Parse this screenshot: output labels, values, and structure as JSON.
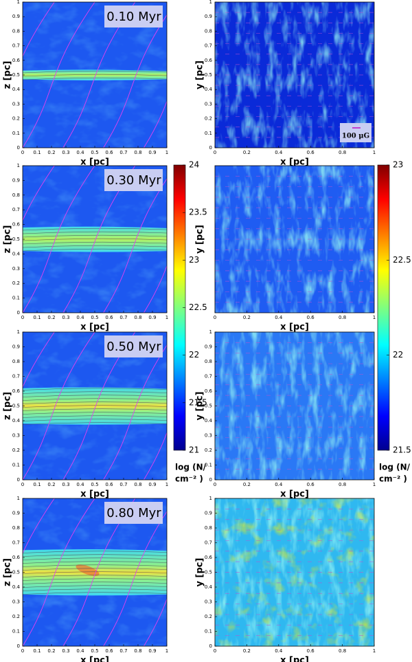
{
  "chart_data": [
    {
      "type": "image",
      "title": "0.10 Myr",
      "xlabel": "x [pc]",
      "ylabel": "z [pc]",
      "xlim": [
        0,
        1
      ],
      "ylim": [
        0,
        1
      ],
      "xticks": [
        0,
        0.1,
        0.2,
        0.3,
        0.4,
        0.5,
        0.6,
        0.7,
        0.8,
        0.9,
        1
      ],
      "yticks": [
        0,
        0.1,
        0.2,
        0.3,
        0.4,
        0.5,
        0.6,
        0.7,
        0.8,
        0.9,
        1
      ]
    },
    {
      "type": "image",
      "annotation": "100 μG",
      "xlabel": "x [pc]",
      "ylabel": "y [pc]",
      "xlim": [
        0,
        1
      ],
      "ylim": [
        0,
        1
      ],
      "xticks": [
        0,
        0.2,
        0.4,
        0.6,
        0.8,
        1
      ],
      "yticks": [
        0,
        0.1,
        0.2,
        0.3,
        0.4,
        0.5,
        0.6,
        0.7,
        0.8,
        0.9,
        1
      ]
    },
    {
      "type": "image",
      "title": "0.30 Myr",
      "xlabel": "x [pc]",
      "ylabel": "z [pc]",
      "xlim": [
        0,
        1
      ],
      "ylim": [
        0,
        1
      ],
      "xticks": [
        0,
        0.1,
        0.2,
        0.3,
        0.4,
        0.5,
        0.6,
        0.7,
        0.8,
        0.9,
        1
      ],
      "yticks": [
        0,
        0.1,
        0.2,
        0.3,
        0.4,
        0.5,
        0.6,
        0.7,
        0.8,
        0.9,
        1
      ]
    },
    {
      "type": "image",
      "xlabel": "x [pc]",
      "ylabel": "y [pc]",
      "xlim": [
        0,
        1
      ],
      "ylim": [
        0,
        1
      ],
      "xticks": [
        0,
        0.2,
        0.4,
        0.6,
        0.8,
        1
      ],
      "yticks": []
    },
    {
      "type": "image",
      "title": "0.50 Myr",
      "xlabel": "x [pc]",
      "ylabel": "z [pc]",
      "xlim": [
        0,
        1
      ],
      "ylim": [
        0,
        1
      ],
      "xticks": [
        0,
        0.1,
        0.2,
        0.3,
        0.4,
        0.5,
        0.6,
        0.7,
        0.8,
        0.9,
        1
      ],
      "yticks": [
        0,
        0.1,
        0.2,
        0.3,
        0.4,
        0.5,
        0.6,
        0.7,
        0.8,
        0.9,
        1
      ]
    },
    {
      "type": "image",
      "xlabel": "x [pc]",
      "ylabel": "y [pc]",
      "xlim": [
        0,
        1
      ],
      "ylim": [
        0,
        1
      ],
      "xticks": [
        0,
        0.2,
        0.4,
        0.6,
        0.8,
        1
      ],
      "yticks": [
        0,
        0.1,
        0.2,
        0.3,
        0.4,
        0.5,
        0.6,
        0.7,
        0.8,
        0.9,
        1
      ]
    },
    {
      "type": "image",
      "title": "0.80 Myr",
      "xlabel": "x [pc]",
      "ylabel": "z [pc]",
      "xlim": [
        0,
        1
      ],
      "ylim": [
        0,
        1
      ],
      "xticks": [
        0,
        0.1,
        0.2,
        0.3,
        0.4,
        0.5,
        0.6,
        0.7,
        0.8,
        0.9,
        1
      ],
      "yticks": [
        0,
        0.1,
        0.2,
        0.3,
        0.4,
        0.5,
        0.6,
        0.7,
        0.8,
        0.9,
        1
      ]
    },
    {
      "type": "image",
      "xlabel": "x [pc]",
      "ylabel": "y [pc]",
      "xlim": [
        0,
        1
      ],
      "ylim": [
        0,
        1
      ],
      "xticks": [
        0,
        0.2,
        0.4,
        0.6,
        0.8,
        1
      ],
      "yticks": [
        0,
        0.1,
        0.2,
        0.3,
        0.4,
        0.5,
        0.6,
        0.7,
        0.8,
        0.9,
        1
      ]
    },
    {
      "type": "colorbar",
      "label": [
        "log (N/",
        "cm⁻² )"
      ],
      "ylim": [
        21,
        24
      ],
      "yticks": [
        21,
        21.5,
        22,
        22.5,
        23,
        23.5,
        24
      ]
    },
    {
      "type": "colorbar",
      "label": [
        "log (N/",
        "cm⁻² )"
      ],
      "ylim": [
        21.5,
        23
      ],
      "yticks": [
        21.5,
        22,
        22.5,
        23
      ]
    }
  ]
}
